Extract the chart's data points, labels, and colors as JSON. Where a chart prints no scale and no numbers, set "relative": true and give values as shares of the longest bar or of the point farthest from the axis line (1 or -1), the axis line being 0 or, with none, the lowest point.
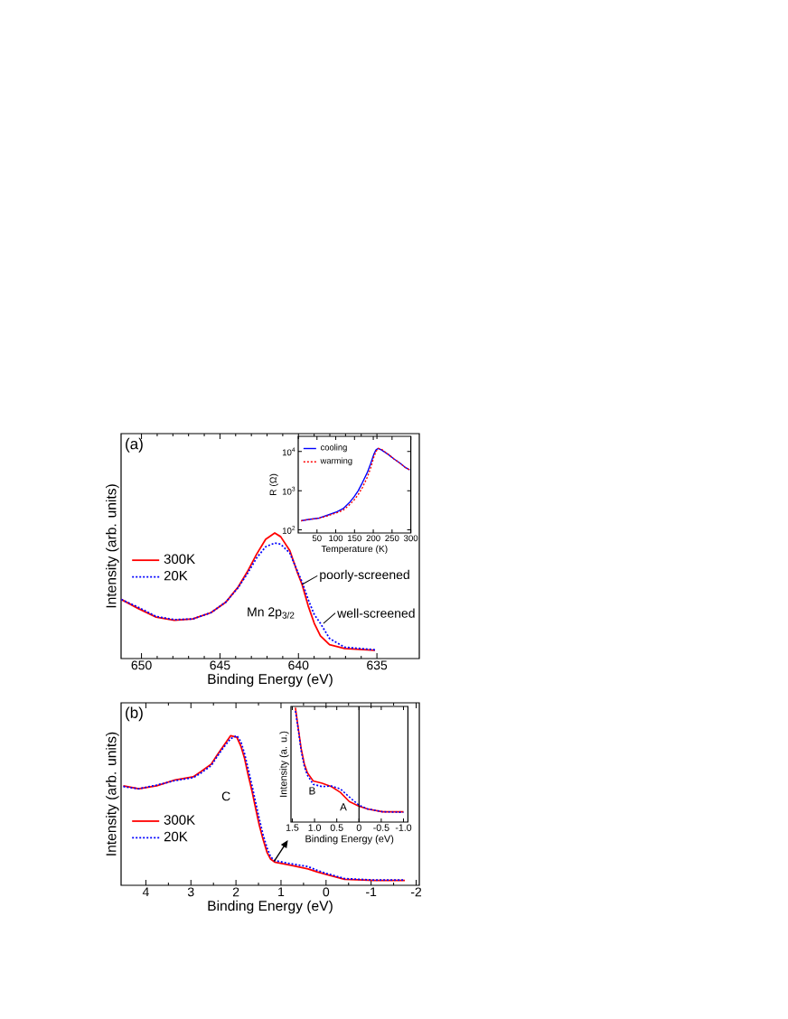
{
  "chart_data": [
    {
      "type": "line",
      "xlabel": "Binding Energy (eV)",
      "ylabel": "Intensity (arb. units)",
      "relative": true,
      "xlim": [
        651.3,
        632.3
      ],
      "xticks": [
        650,
        645,
        640,
        635
      ],
      "legend": "left",
      "x": [
        651.28,
        650.23,
        649.07,
        647.91,
        646.74,
        645.58,
        644.62,
        643.84,
        643.26,
        642.67,
        642.09,
        641.51,
        641.13,
        640.55,
        640.08,
        639.77,
        639.38,
        638.99,
        638.6,
        638.02,
        637.06,
        635.12
      ],
      "series": [
        {
          "name": "300K",
          "color": "#ff0000",
          "line_style": "solid",
          "values": [
            0.47,
            0.4,
            0.33,
            0.305,
            0.315,
            0.365,
            0.45,
            0.57,
            0.69,
            0.83,
            0.95,
            1.0,
            0.97,
            0.86,
            0.69,
            0.59,
            0.42,
            0.28,
            0.18,
            0.11,
            0.08,
            0.065
          ]
        },
        {
          "name": "20K",
          "color": "#0000ff",
          "line_style": "dotted",
          "values": [
            0.47,
            0.41,
            0.335,
            0.31,
            0.315,
            0.365,
            0.45,
            0.565,
            0.675,
            0.8,
            0.89,
            0.92,
            0.91,
            0.84,
            0.7,
            0.61,
            0.47,
            0.35,
            0.28,
            0.16,
            0.09,
            0.07
          ]
        }
      ],
      "annotations": [
        "(a)",
        {
          "text": "poorly-screened",
          "x": 639.77,
          "y": 0.59
        },
        "Mn 2p$_{3/2}$",
        {
          "text": "well-screened",
          "x": 638.41,
          "y": 0.28
        }
      ]
    },
    {
      "type": "line",
      "xlabel": "Temperature (K)",
      "ylabel": "R (Ω)",
      "log": true,
      "xlim": [
        0,
        300
      ],
      "xticks": [
        50,
        100,
        150,
        200,
        250,
        300
      ],
      "ylim": [
        83,
        24500
      ],
      "yticks": [
        {
          "value": 100,
          "label": "10$^{2}$"
        },
        {
          "value": 1000,
          "label": "10$^{3}$"
        },
        {
          "value": 10000,
          "label": "10$^{4}$"
        }
      ],
      "legend": "top left",
      "x": [
        8,
        24,
        56,
        80,
        104,
        120,
        136,
        149,
        160,
        171,
        184,
        193,
        201,
        207,
        213,
        222,
        241,
        255,
        273,
        284,
        297
      ],
      "series": [
        {
          "name": "cooling",
          "color": "#0000ff",
          "line_style": "solid",
          "values": [
            170,
            182,
            200,
            240,
            290,
            350,
            490,
            700,
            1000,
            1600,
            2900,
            4900,
            8300,
            11000,
            12000,
            11000,
            8300,
            6500,
            4900,
            4000,
            3400
          ]
        },
        {
          "name": "warming",
          "color": "#ff0000",
          "line_style": "dotted",
          "values": [
            170,
            182,
            198,
            230,
            275,
            320,
            430,
            580,
            800,
            1200,
            2200,
            3800,
            7000,
            10000,
            12000,
            11500,
            8300,
            6500,
            4900,
            4000,
            3400
          ]
        }
      ]
    },
    {
      "type": "line",
      "xlabel": "Binding Energy (eV)",
      "ylabel": "Intensity (arb. units)",
      "relative": true,
      "xlim": [
        4.55,
        -2.07
      ],
      "xticks": [
        4,
        3,
        2,
        1,
        0,
        -1,
        -2
      ],
      "legend": "bottom left",
      "x": [
        4.5,
        4.16,
        3.76,
        3.35,
        2.95,
        2.78,
        2.55,
        2.42,
        2.28,
        2.12,
        1.98,
        1.89,
        1.81,
        1.73,
        1.64,
        1.56,
        1.48,
        1.4,
        1.31,
        1.23,
        1.14,
        0.8,
        0.4,
        0.2,
        0.0,
        -0.41,
        -1.08,
        -1.75
      ],
      "series": [
        {
          "name": "300K",
          "color": "#ff0000",
          "line_style": "solid",
          "values": [
            0.665,
            0.645,
            0.665,
            0.705,
            0.725,
            0.76,
            0.81,
            0.87,
            0.93,
            1.0,
            0.99,
            0.93,
            0.85,
            0.74,
            0.625,
            0.51,
            0.4,
            0.31,
            0.22,
            0.175,
            0.155,
            0.135,
            0.11,
            0.09,
            0.073,
            0.04,
            0.033,
            0.033
          ]
        },
        {
          "name": "20K",
          "color": "#0000ff",
          "line_style": "dotted",
          "values": [
            0.66,
            0.645,
            0.67,
            0.7,
            0.72,
            0.75,
            0.8,
            0.86,
            0.92,
            0.98,
            1.0,
            0.96,
            0.88,
            0.78,
            0.66,
            0.55,
            0.44,
            0.34,
            0.25,
            0.19,
            0.165,
            0.145,
            0.125,
            0.1,
            0.08,
            0.045,
            0.035,
            0.035
          ]
        }
      ],
      "annotations": [
        "(b)",
        "C"
      ]
    },
    {
      "type": "line",
      "xlabel": "Binding Energy (eV)",
      "ylabel": "Intensity (a. u.)",
      "relative": true,
      "xlim": [
        1.53,
        -1.1
      ],
      "xticks": [
        1.5,
        {
          "value": 1,
          "label": "1.0"
        },
        0.5,
        0,
        -0.5,
        {
          "value": -1,
          "label": "-1.0"
        }
      ],
      "ref_lines": [
        {
          "axis": "x",
          "value": 0
        }
      ],
      "x": [
        1.43,
        1.37,
        1.3,
        1.23,
        1.16,
        1.03,
        0.83,
        0.62,
        0.42,
        0.22,
        0.01,
        -0.19,
        -0.53,
        -1.0
      ],
      "series": [
        {
          "color": "#ff0000",
          "line_style": "solid",
          "values": [
            1.0,
            0.83,
            0.64,
            0.51,
            0.43,
            0.36,
            0.34,
            0.31,
            0.26,
            0.18,
            0.14,
            0.115,
            0.09,
            0.09
          ]
        },
        {
          "color": "#0000ff",
          "line_style": "dotted",
          "values": [
            0.97,
            0.82,
            0.62,
            0.485,
            0.41,
            0.33,
            0.31,
            0.315,
            0.29,
            0.22,
            0.15,
            0.115,
            0.09,
            0.085
          ]
        }
      ],
      "annotations": [
        "B",
        "A"
      ]
    }
  ]
}
